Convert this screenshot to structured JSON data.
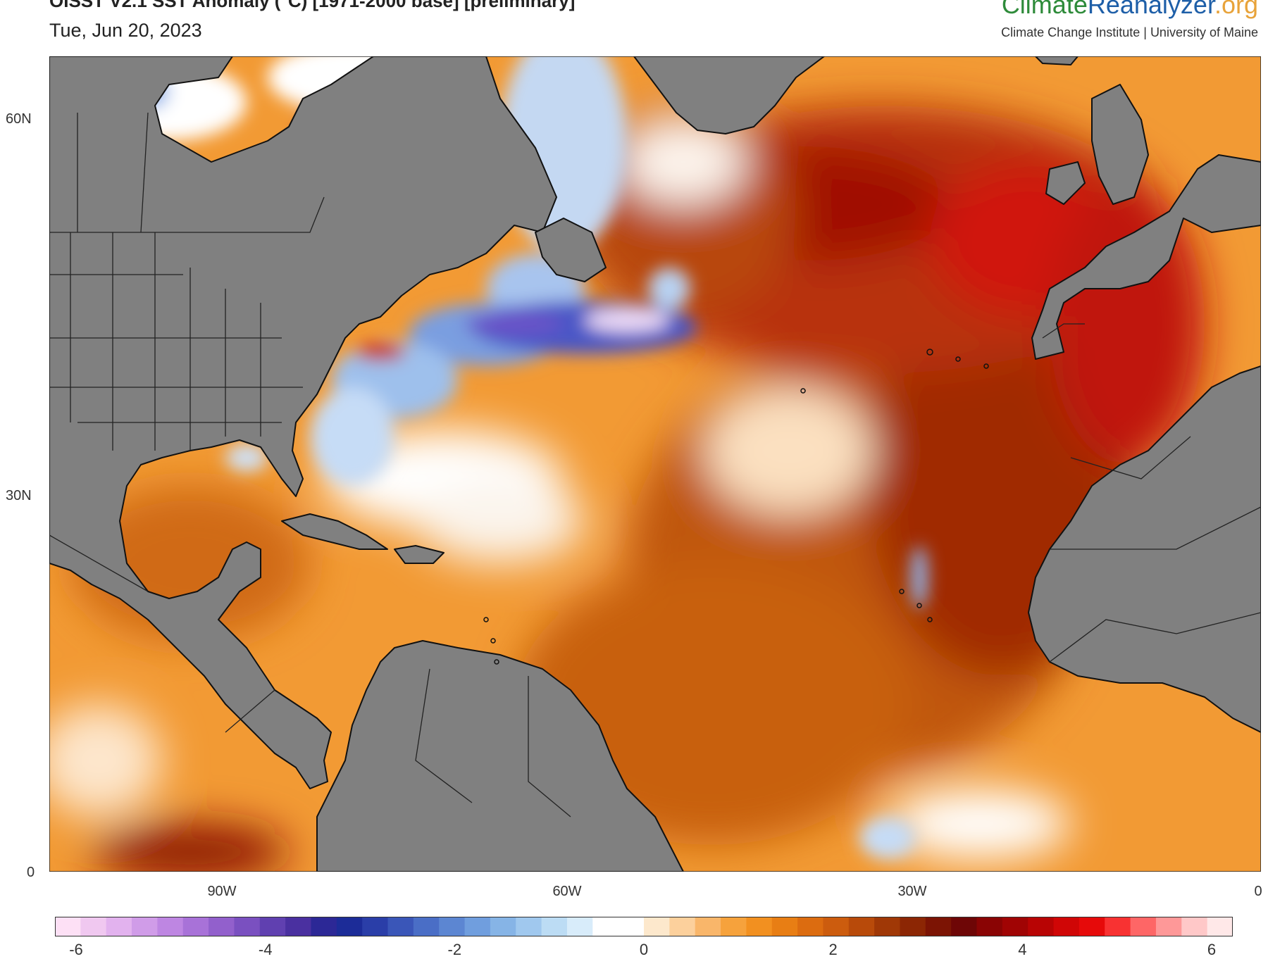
{
  "header": {
    "title": "OISST V2.1 SST Anomaly (°C) [1971-2000 base] [preliminary]",
    "date": "Tue, Jun 20, 2023"
  },
  "logo": {
    "part1": "Climate",
    "part2": "Reanalyzer",
    "part3": ".org"
  },
  "institution": "Climate Change Institute | University of Maine",
  "map": {
    "lat_labels": [
      "60N",
      "30N",
      "0"
    ],
    "lon_labels": [
      "90W",
      "60W",
      "30W",
      "0"
    ],
    "land_color": "#808080",
    "coast_color": "#111111"
  },
  "colorbar": {
    "labels": [
      "-6",
      "-4",
      "-2",
      "0",
      "2",
      "4",
      "6"
    ],
    "colors": [
      "#fde0f5",
      "#f0c8f0",
      "#e2b2ee",
      "#d09ce8",
      "#be86e2",
      "#a872d8",
      "#9260cc",
      "#7a50c0",
      "#6040b0",
      "#4a30a0",
      "#2c2896",
      "#1c2c98",
      "#2a3ea8",
      "#3a56b8",
      "#4a6ec6",
      "#5c86d2",
      "#709ede",
      "#86b4e6",
      "#a0c8ee",
      "#bcdcf4",
      "#d8ecfa",
      "#ffffff",
      "#ffffff",
      "#fde8cc",
      "#fcd09c",
      "#f9b66a",
      "#f6a23c",
      "#f29020",
      "#e87e14",
      "#dc6c10",
      "#cc5c0e",
      "#b84a0a",
      "#a03806",
      "#8c2604",
      "#7c1404",
      "#6e0606",
      "#8a0404",
      "#a00404",
      "#b80404",
      "#d00606",
      "#e60a0a",
      "#f83232",
      "#fe6666",
      "#fe9898",
      "#ffc8c8",
      "#ffe8e8"
    ]
  }
}
